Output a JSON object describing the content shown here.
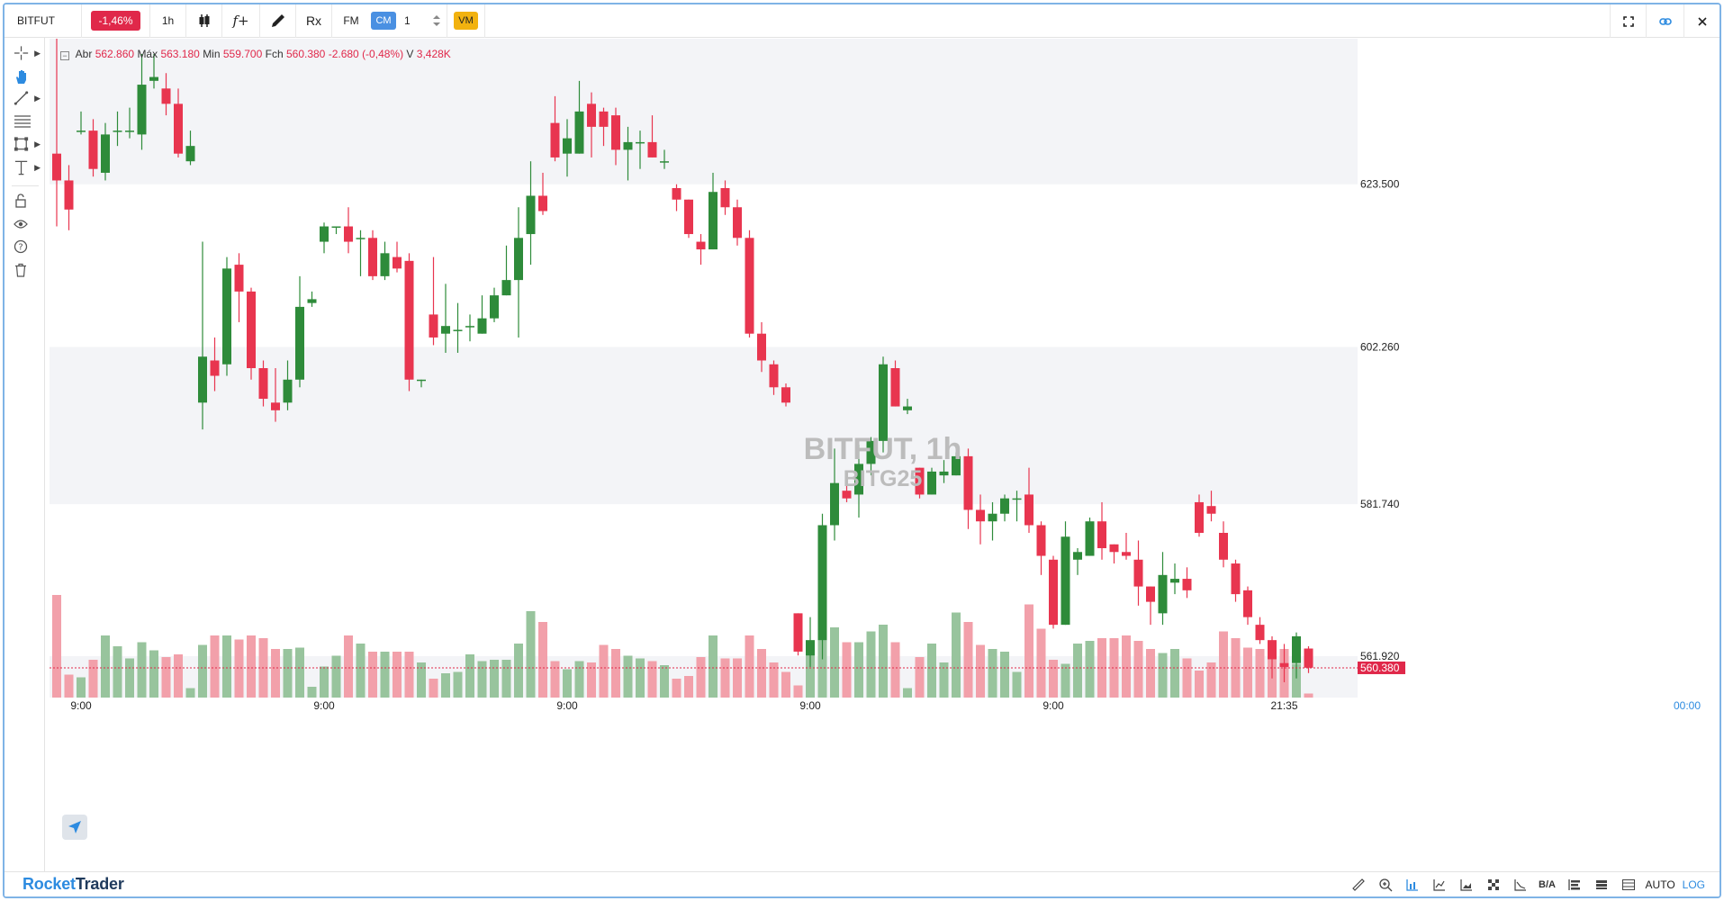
{
  "toolbar": {
    "symbol": "BITFUT",
    "change": "-1,46%",
    "interval": "1h",
    "candles_icon": "candlestick-icon",
    "function_label": "f+",
    "pencil_icon": "pencil-icon",
    "rx_label": "Rx",
    "fm_label": "FM",
    "cm_label": "CM",
    "quantity": "1",
    "vm_label": "VM",
    "fullscreen_icon": "fullscreen-icon",
    "link_icon": "link-icon",
    "close_icon": "close-icon"
  },
  "ohlc": {
    "open_label": "Abr",
    "open": "562.860",
    "high_label": "Máx",
    "high": "563.180",
    "low_label": "Min",
    "low": "559.700",
    "close_label": "Fch",
    "close": "560.380",
    "change": "-2.680 (-0,48%)",
    "volume_label": "V",
    "volume": "3,428K"
  },
  "watermark": {
    "title": "BITFUT, 1h",
    "subtitle": "BITG25"
  },
  "left_tools": [
    {
      "name": "crosshair-icon",
      "has_arrow": true
    },
    {
      "name": "hand-icon",
      "has_arrow": false
    },
    {
      "name": "trendline-icon",
      "has_arrow": true
    },
    {
      "name": "fib-levels-icon",
      "has_arrow": false
    },
    {
      "name": "rectangle-icon",
      "has_arrow": true
    },
    {
      "name": "text-tool-icon",
      "has_arrow": true
    },
    {
      "name": "lock-icon",
      "has_arrow": false
    },
    {
      "name": "eye-icon",
      "has_arrow": false
    },
    {
      "name": "help-icon",
      "has_arrow": false
    },
    {
      "name": "trash-icon",
      "has_arrow": false
    }
  ],
  "bottom": {
    "brand_1": "Rocket",
    "brand_2": "Trader",
    "ba_label": "B/A",
    "auto_label": "AUTO",
    "log_label": "LOG"
  },
  "colors": {
    "up": "#2e8b3a",
    "down": "#e8354f",
    "up_vol": "#98c49d",
    "down_vol": "#f2a0aa",
    "band": "#f3f4f7",
    "last_price": "#e0284a"
  },
  "chart_data": {
    "type": "candlestick",
    "symbol": "BITFUT",
    "interval": "1h",
    "y_ticks": [
      "623.500",
      "602.260",
      "581.740",
      "561.920"
    ],
    "y_tick_values": [
      623.5,
      602.26,
      581.74,
      561.92
    ],
    "last_price_label": "560.380",
    "last_price": 560.38,
    "x_ticks": [
      "9:00",
      "9:00",
      "9:00",
      "9:00",
      "9:00",
      "21:35"
    ],
    "x_tick_index": [
      2,
      22,
      42,
      62,
      82,
      101
    ],
    "time_readout": "00:00",
    "ylim": [
      556.5,
      642.5
    ],
    "candles": [
      [
        627.5,
        624.0,
        642.5,
        618.0,
        7.6
      ],
      [
        624.0,
        620.2,
        626.0,
        617.5,
        1.7
      ],
      [
        630.5,
        630.5,
        633.0,
        630.0,
        1.5
      ],
      [
        630.5,
        625.5,
        632.0,
        624.5,
        2.8
      ],
      [
        625.0,
        630.0,
        631.5,
        624.0,
        4.6
      ],
      [
        630.5,
        630.5,
        633.0,
        628.5,
        3.8
      ],
      [
        630.5,
        630.5,
        633.5,
        629.5,
        2.9
      ],
      [
        630.0,
        636.5,
        640.5,
        628.0,
        4.1
      ],
      [
        637.0,
        637.5,
        640.5,
        636.0,
        3.5
      ],
      [
        636.0,
        634.0,
        638.0,
        632.5,
        3.0
      ],
      [
        634.0,
        627.5,
        636.0,
        627.0,
        3.2
      ],
      [
        626.5,
        628.5,
        630.5,
        626.0,
        0.7
      ],
      [
        595.0,
        601.0,
        616.0,
        591.5,
        3.9
      ],
      [
        600.5,
        598.5,
        603.5,
        596.5,
        4.6
      ],
      [
        600.0,
        612.5,
        614.0,
        598.5,
        4.6
      ],
      [
        613.0,
        609.5,
        614.5,
        605.5,
        4.3
      ],
      [
        609.5,
        599.5,
        610.0,
        598.0,
        4.6
      ],
      [
        599.5,
        595.5,
        600.5,
        594.5,
        4.4
      ],
      [
        595.0,
        594.0,
        599.5,
        592.5,
        3.6
      ],
      [
        595.0,
        598.0,
        600.5,
        594.0,
        3.6
      ],
      [
        598.0,
        607.5,
        611.5,
        597.0,
        3.7
      ],
      [
        608.0,
        608.5,
        609.5,
        607.5,
        0.8
      ],
      [
        616.0,
        618.0,
        618.5,
        614.5,
        2.3
      ],
      [
        618.0,
        618.0,
        617.5,
        617.0,
        3.1
      ],
      [
        618.0,
        616.0,
        620.5,
        614.5,
        4.6
      ],
      [
        616.5,
        616.5,
        617.5,
        611.5,
        4.0
      ],
      [
        616.5,
        611.5,
        617.5,
        611.0,
        3.4
      ],
      [
        611.5,
        614.5,
        616.0,
        611.0,
        3.4
      ],
      [
        614.0,
        612.5,
        616.0,
        612.0,
        3.4
      ],
      [
        613.5,
        598.0,
        614.5,
        596.5,
        3.4
      ],
      [
        598.0,
        598.0,
        597.5,
        597.0,
        2.6
      ],
      [
        606.5,
        603.5,
        614.0,
        602.5,
        1.4
      ],
      [
        604.0,
        605.0,
        610.5,
        601.5,
        1.8
      ],
      [
        604.5,
        604.5,
        608.0,
        601.5,
        1.9
      ],
      [
        605.0,
        605.0,
        606.5,
        603.0,
        3.2
      ],
      [
        604.0,
        606.0,
        609.0,
        604.0,
        2.7
      ],
      [
        606.0,
        609.0,
        610.0,
        605.5,
        2.8
      ],
      [
        609.0,
        611.0,
        615.5,
        610.5,
        2.8
      ],
      [
        611.0,
        616.5,
        620.5,
        603.5,
        4.0
      ],
      [
        617.0,
        622.0,
        626.5,
        613.0,
        6.4
      ],
      [
        622.0,
        620.0,
        625.0,
        619.5,
        5.6
      ],
      [
        631.5,
        627.0,
        635.0,
        626.5,
        2.7
      ],
      [
        627.5,
        629.5,
        632.0,
        624.5,
        2.1
      ],
      [
        627.5,
        633.0,
        637.0,
        627.5,
        2.7
      ],
      [
        634.0,
        631.0,
        635.5,
        627.0,
        2.6
      ],
      [
        633.0,
        631.0,
        633.5,
        628.5,
        3.9
      ],
      [
        632.5,
        628.0,
        633.5,
        626.0,
        3.6
      ],
      [
        628.0,
        629.0,
        631.0,
        624.0,
        3.1
      ],
      [
        629.0,
        629.0,
        630.5,
        625.5,
        2.9
      ],
      [
        629.0,
        627.0,
        632.5,
        627.5,
        2.7
      ],
      [
        626.5,
        626.5,
        628.0,
        625.5,
        2.4
      ],
      [
        623.0,
        621.5,
        623.5,
        620.0,
        1.4
      ],
      [
        621.5,
        617.0,
        621.0,
        616.5,
        1.6
      ],
      [
        616.0,
        615.0,
        617.0,
        613.0,
        3.0
      ],
      [
        615.0,
        622.5,
        625.0,
        615.0,
        4.6
      ],
      [
        623.0,
        620.5,
        624.0,
        619.5,
        2.9
      ],
      [
        620.5,
        616.5,
        621.5,
        615.5,
        2.9
      ],
      [
        616.5,
        604.0,
        617.5,
        603.5,
        4.6
      ],
      [
        604.0,
        600.5,
        605.5,
        599.0,
        3.6
      ],
      [
        600.0,
        597.0,
        600.5,
        596.0,
        2.6
      ],
      [
        597.0,
        595.0,
        597.5,
        594.5,
        1.9
      ],
      [
        567.5,
        562.5,
        567.5,
        562.0,
        0.9
      ],
      [
        562.0,
        564.0,
        567.0,
        560.5,
        3.9
      ],
      [
        564.0,
        579.0,
        580.5,
        561.5,
        6.1
      ],
      [
        579.0,
        584.5,
        589.0,
        577.0,
        5.2
      ],
      [
        583.5,
        582.5,
        585.5,
        582.0,
        4.1
      ],
      [
        583.0,
        587.0,
        589.5,
        580.0,
        4.1
      ],
      [
        587.0,
        590.0,
        590.5,
        585.5,
        4.9
      ],
      [
        590.0,
        600.0,
        601.0,
        588.5,
        5.4
      ],
      [
        599.5,
        594.5,
        600.5,
        594.5,
        4.1
      ],
      [
        594.0,
        594.5,
        595.5,
        593.5,
        0.7
      ],
      [
        586.5,
        583.0,
        584.5,
        582.5,
        3.0
      ],
      [
        583.0,
        586.0,
        586.5,
        583.5,
        4.0
      ],
      [
        585.5,
        586.0,
        587.5,
        584.5,
        2.6
      ],
      [
        585.5,
        588.0,
        588.5,
        586.0,
        6.3
      ],
      [
        588.0,
        581.0,
        589.0,
        578.5,
        5.6
      ],
      [
        581.0,
        579.5,
        583.0,
        576.5,
        3.9
      ],
      [
        579.5,
        580.5,
        582.0,
        577.0,
        3.6
      ],
      [
        580.5,
        582.5,
        583.0,
        579.5,
        3.4
      ],
      [
        582.5,
        582.5,
        583.5,
        579.5,
        1.9
      ],
      [
        583.0,
        579.0,
        586.5,
        578.0,
        6.9
      ],
      [
        579.0,
        575.0,
        579.5,
        572.5,
        5.1
      ],
      [
        574.5,
        566.0,
        575.0,
        565.5,
        2.8
      ],
      [
        566.0,
        577.5,
        579.5,
        566.5,
        2.5
      ],
      [
        574.5,
        575.5,
        576.0,
        572.5,
        4.0
      ],
      [
        575.0,
        579.5,
        580.0,
        575.0,
        4.2
      ],
      [
        579.5,
        576.0,
        582.0,
        574.5,
        4.4
      ],
      [
        576.5,
        575.5,
        576.5,
        574.0,
        4.4
      ],
      [
        575.5,
        575.0,
        578.0,
        574.5,
        4.6
      ],
      [
        574.5,
        571.0,
        577.0,
        568.5,
        4.2
      ],
      [
        571.0,
        569.0,
        569.0,
        566.0,
        3.6
      ],
      [
        567.5,
        572.5,
        575.5,
        566.0,
        3.3
      ],
      [
        571.5,
        572.0,
        574.0,
        570.0,
        3.6
      ],
      [
        572.0,
        570.5,
        573.5,
        569.5,
        2.9
      ],
      [
        582.0,
        578.0,
        583.0,
        577.5,
        2.0
      ],
      [
        581.5,
        580.5,
        583.5,
        579.5,
        2.6
      ],
      [
        578.0,
        574.5,
        579.5,
        573.5,
        4.9
      ],
      [
        574.0,
        570.0,
        574.5,
        569.0,
        4.4
      ],
      [
        570.5,
        567.0,
        571.0,
        566.0,
        3.7
      ],
      [
        566.0,
        564.0,
        567.0,
        563.5,
        3.6
      ],
      [
        564.0,
        561.5,
        564.5,
        559.0,
        3.9
      ],
      [
        561.0,
        560.5,
        563.5,
        558.5,
        3.6
      ],
      [
        561.0,
        564.5,
        565.0,
        559.0,
        2.5
      ],
      [
        562.9,
        560.4,
        563.2,
        559.7,
        0.3
      ]
    ]
  }
}
